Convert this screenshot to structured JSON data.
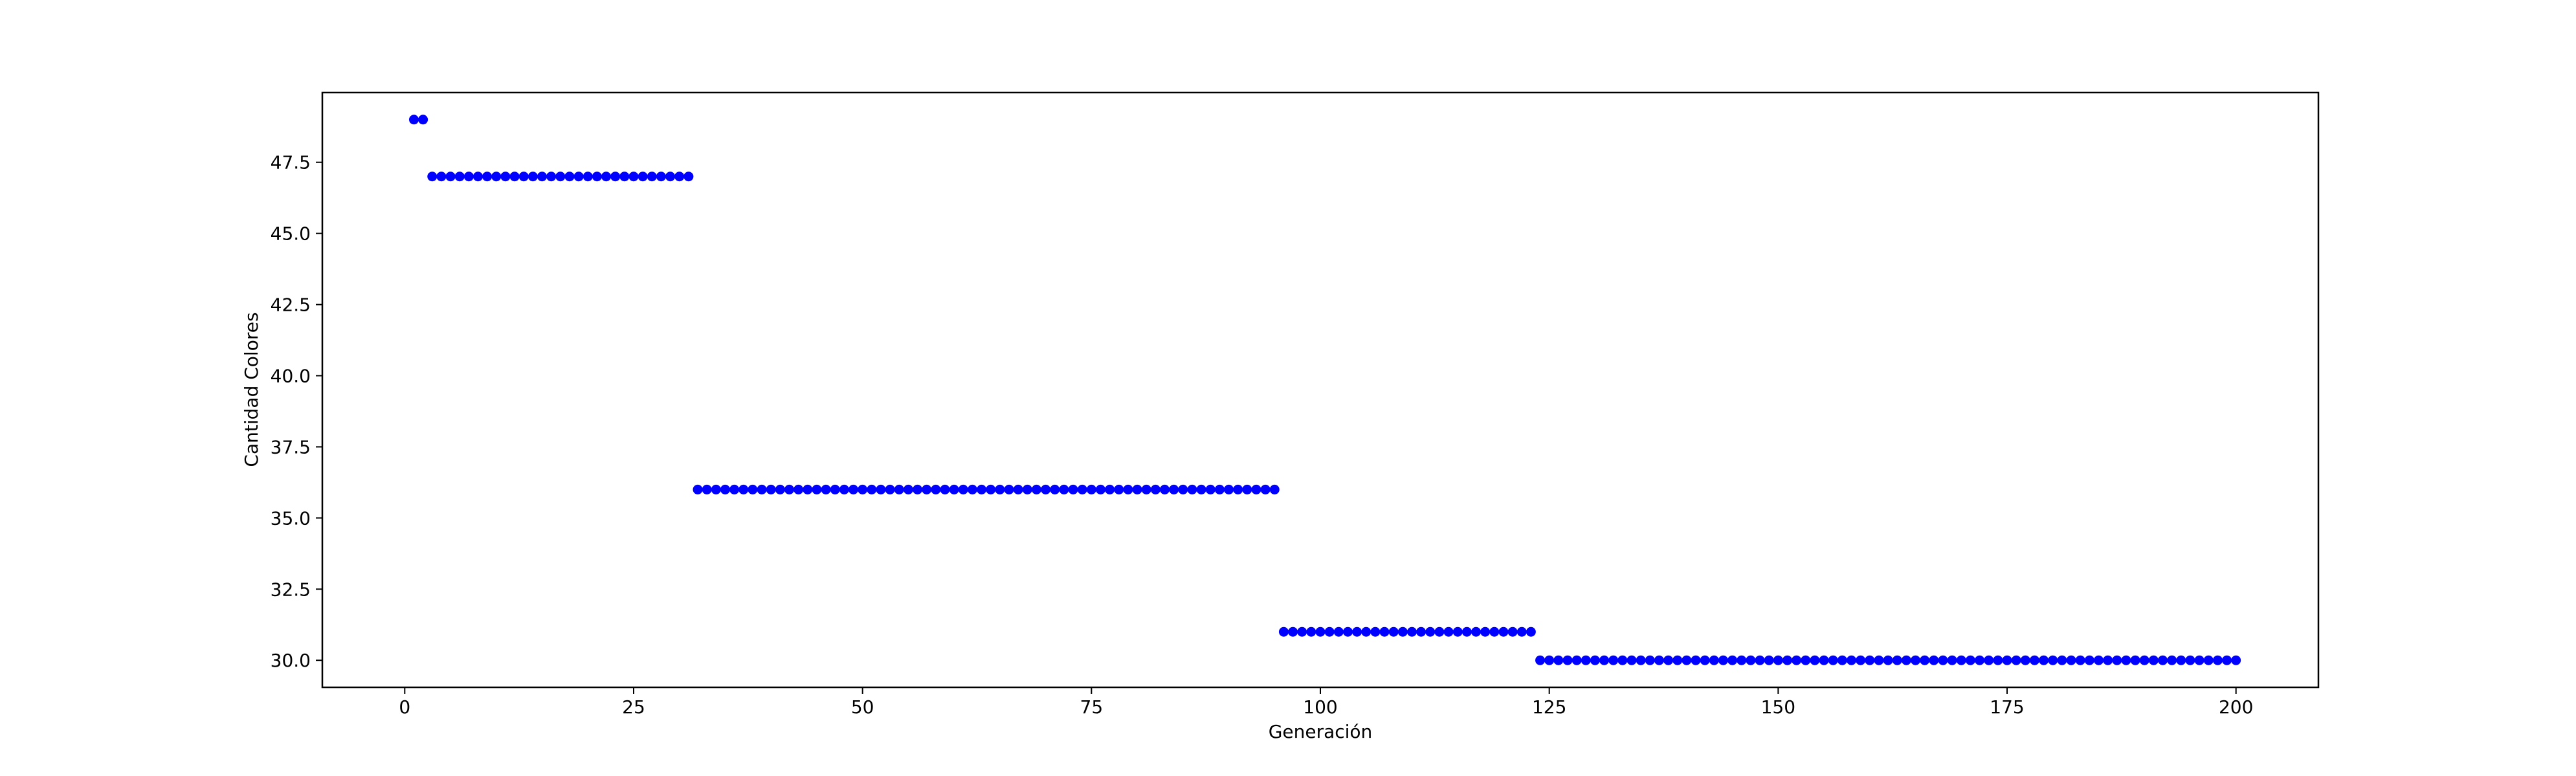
{
  "chart_data": {
    "type": "scatter",
    "title": "",
    "xlabel": "Generación",
    "ylabel": "Cantidad Colores",
    "xlim": [
      -9,
      209
    ],
    "ylim": [
      29.05,
      49.95
    ],
    "xticks": [
      0,
      25,
      50,
      75,
      100,
      125,
      150,
      175,
      200
    ],
    "xtick_labels": [
      "0",
      "25",
      "50",
      "75",
      "100",
      "125",
      "150",
      "175",
      "200"
    ],
    "yticks": [
      30.0,
      32.5,
      35.0,
      37.5,
      40.0,
      42.5,
      45.0,
      47.5
    ],
    "ytick_labels": [
      "30.0",
      "32.5",
      "35.0",
      "37.5",
      "40.0",
      "42.5",
      "45.0",
      "47.5"
    ],
    "grid": false,
    "marker_color": "#0000ff",
    "segments": [
      {
        "x_start": 1,
        "x_end": 2,
        "y": 49
      },
      {
        "x_start": 3,
        "x_end": 31,
        "y": 47
      },
      {
        "x_start": 32,
        "x_end": 95,
        "y": 36
      },
      {
        "x_start": 96,
        "x_end": 123,
        "y": 31
      },
      {
        "x_start": 124,
        "x_end": 200,
        "y": 30
      }
    ]
  }
}
